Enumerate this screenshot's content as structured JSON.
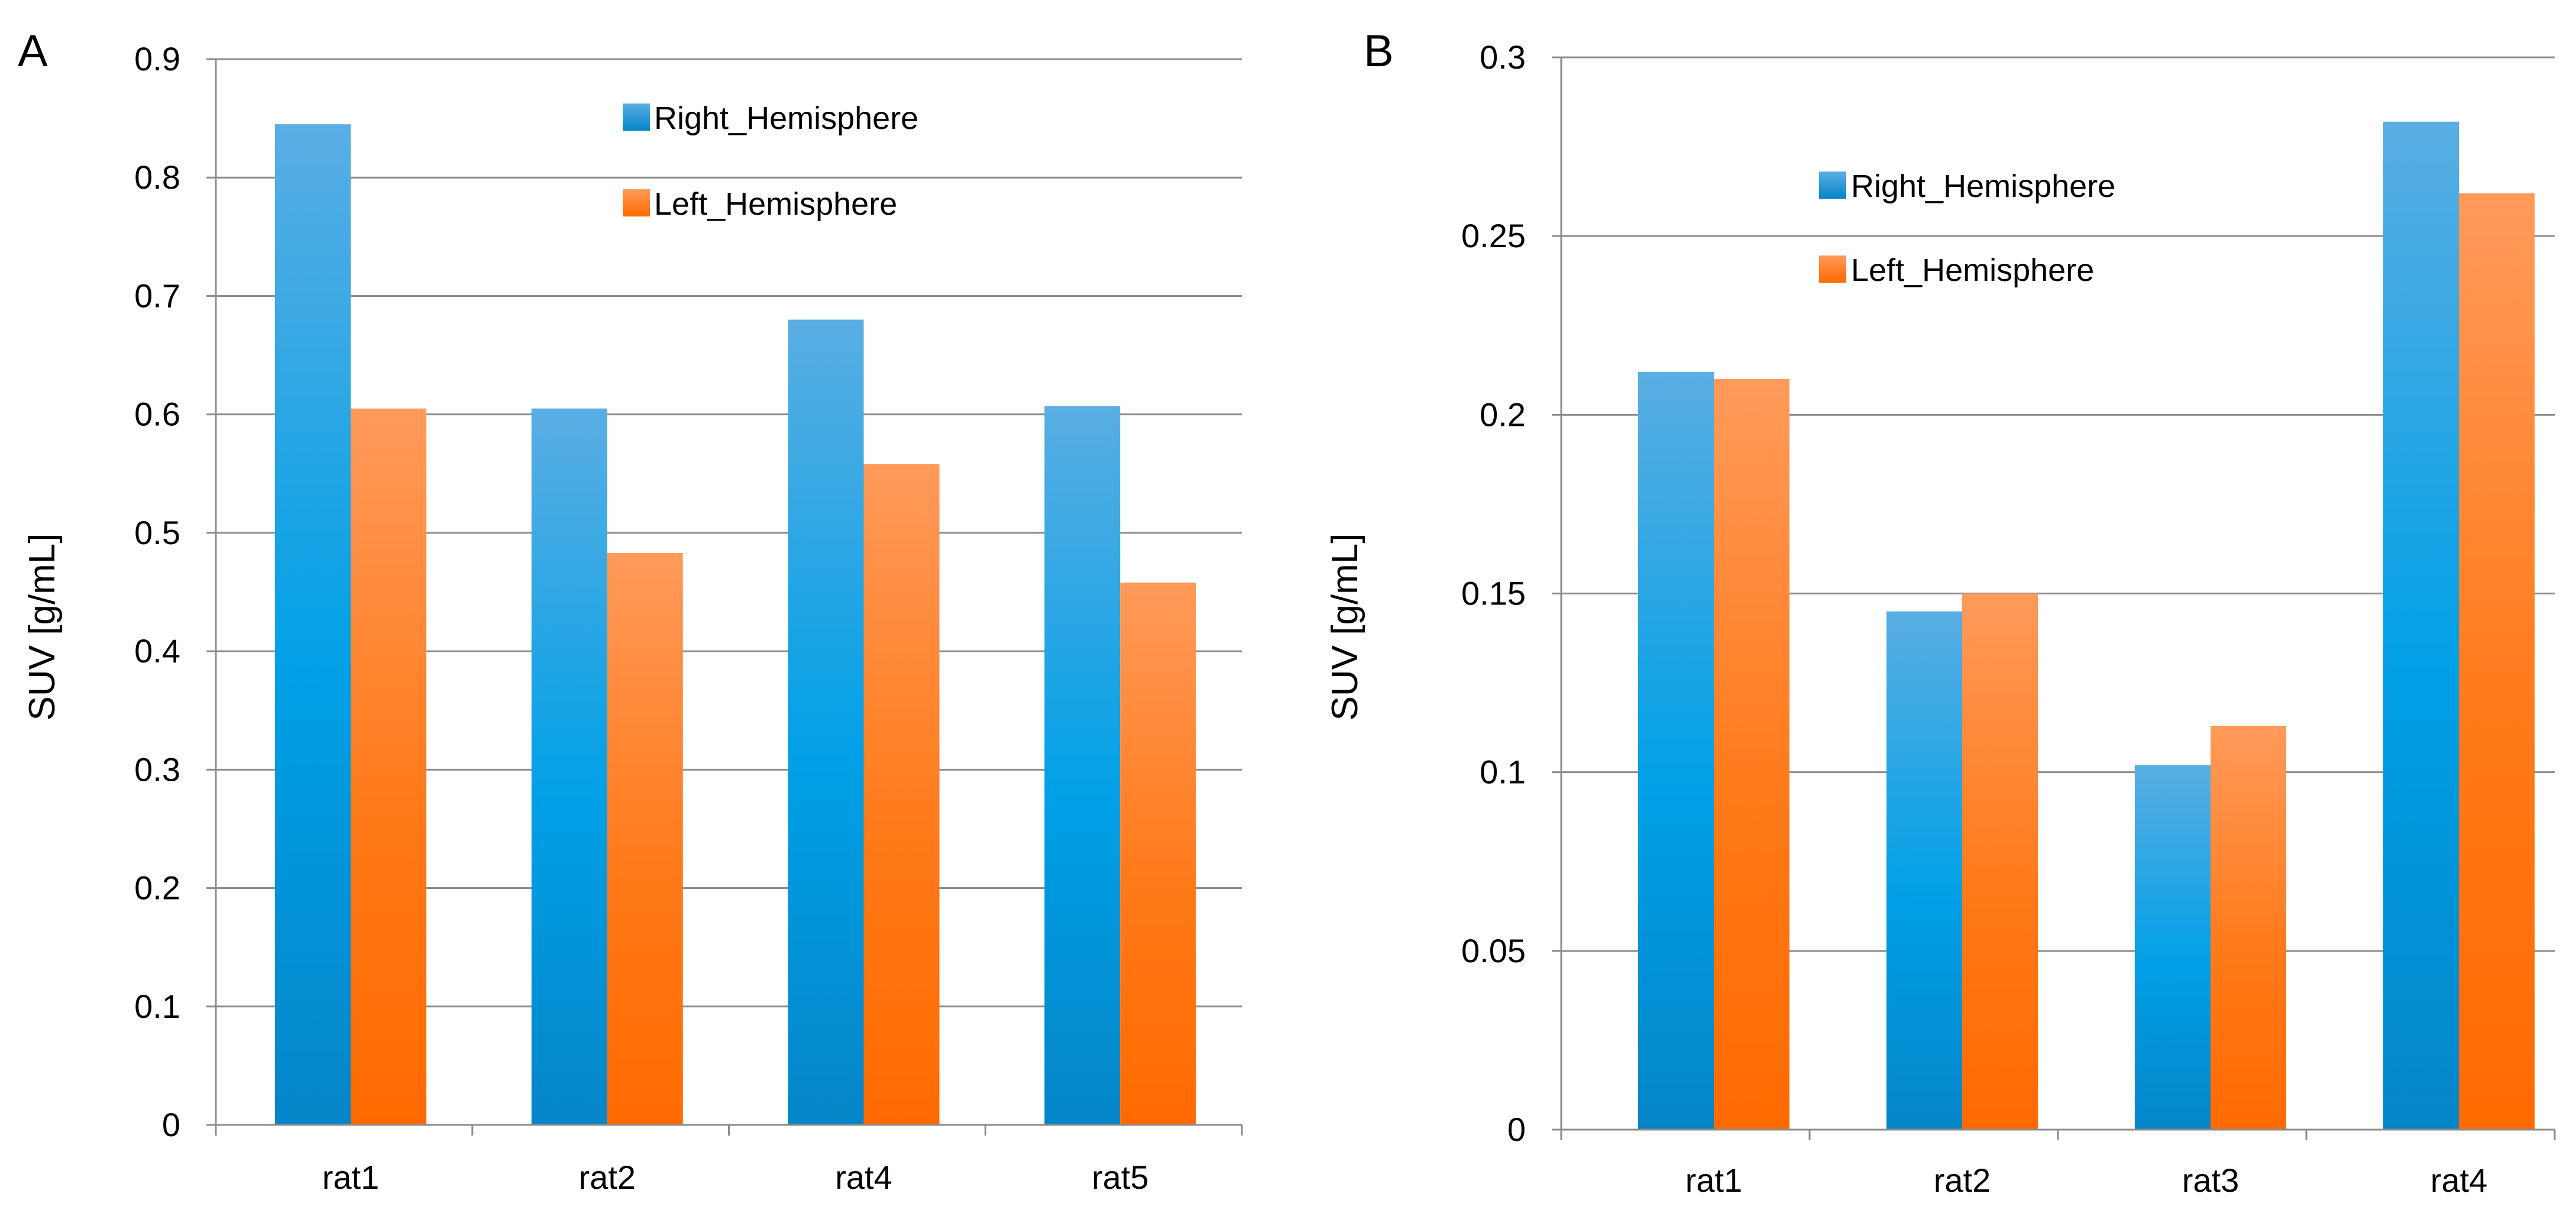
{
  "colors": {
    "right_hemisphere": "#1e8fd6",
    "left_hemisphere": "#ff7a1a",
    "grid": "#8c8c8c"
  },
  "chart_data": [
    {
      "panel": "A",
      "type": "bar",
      "ylabel": "SUV [g/mL]",
      "xlabel": "",
      "ylim": [
        0,
        0.9
      ],
      "yticks": [
        "0",
        "0.1",
        "0.2",
        "0.3",
        "0.4",
        "0.5",
        "0.6",
        "0.7",
        "0.8",
        "0.9"
      ],
      "grid": true,
      "legend_position": "top-right",
      "categories": [
        "rat1",
        "rat2",
        "rat4",
        "rat5"
      ],
      "series": [
        {
          "name": "Right_Hemisphere",
          "values": [
            0.845,
            0.605,
            0.68,
            0.607
          ]
        },
        {
          "name": "Left_Hemisphere",
          "values": [
            0.605,
            0.483,
            0.558,
            0.458
          ]
        }
      ]
    },
    {
      "panel": "B",
      "type": "bar",
      "ylabel": "SUV [g/mL]",
      "xlabel": "",
      "ylim": [
        0,
        0.3
      ],
      "yticks": [
        "0",
        "0.05",
        "0.1",
        "0.15",
        "0.2",
        "0.25",
        "0.3"
      ],
      "grid": true,
      "legend_position": "top-right",
      "categories": [
        "rat1",
        "rat2",
        "rat3",
        "rat4"
      ],
      "series": [
        {
          "name": "Right_Hemisphere",
          "values": [
            0.212,
            0.145,
            0.102,
            0.282
          ]
        },
        {
          "name": "Left_Hemisphere",
          "values": [
            0.21,
            0.15,
            0.113,
            0.262
          ]
        }
      ]
    }
  ]
}
